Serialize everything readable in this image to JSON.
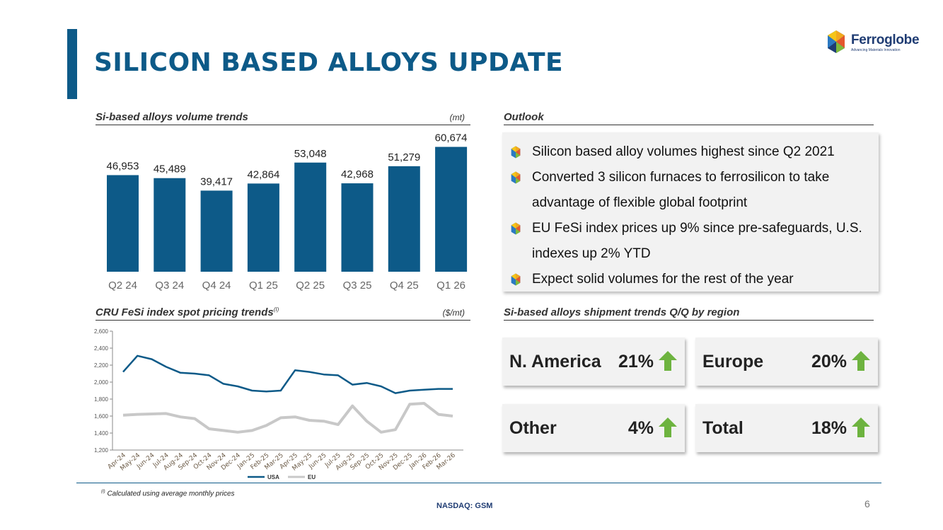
{
  "page": {
    "title": "SILICON BASED ALLOYS UPDATE",
    "page_number": "6",
    "ticker": "NASDAQ: GSM",
    "footnote_marker": "(I)",
    "footnote": "Calculated using average monthly prices"
  },
  "logo": {
    "name": "Ferroglobe",
    "tagline": "Advancing Materials Innovation"
  },
  "volume_section": {
    "title": "Si-based alloys volume trends",
    "unit": "(mt)"
  },
  "outlook": {
    "title": "Outlook",
    "items": [
      {
        "lines": [
          "Silicon based alloy volumes highest since Q2 2021"
        ]
      },
      {
        "lines": [
          "Converted 3 silicon furnaces to ferrosilicon to take",
          "advantage of flexible global footprint"
        ]
      },
      {
        "lines": [
          "EU FeSi index prices up 9% since pre-safeguards, U.S.",
          "indexes up 2% YTD"
        ]
      },
      {
        "lines": [
          "Expect solid volumes for the rest of the year"
        ]
      }
    ]
  },
  "pricing_section": {
    "title": "CRU FeSi index spot pricing trends",
    "marker": "(I)",
    "unit": "($/mt)"
  },
  "shipment_section": {
    "title": "Si-based alloys shipment trends Q/Q by region",
    "cards": [
      {
        "label": "N. America",
        "value": "21%"
      },
      {
        "label": "Europe",
        "value": "20%"
      },
      {
        "label": "Other",
        "value": "4%"
      },
      {
        "label": "Total",
        "value": "18%"
      }
    ]
  },
  "colors": {
    "brand_blue": "#0d5a88",
    "usa_line": "#0d5a88",
    "eu_line": "#c8c8c8",
    "arrow_green": "#6db33f"
  },
  "chart_data": [
    {
      "type": "bar",
      "categories": [
        "Q2 24",
        "Q3 24",
        "Q4 24",
        "Q1 25",
        "Q2 25",
        "Q3 25",
        "Q4 25",
        "Q1 26"
      ],
      "values": [
        46953,
        45489,
        39417,
        42864,
        53048,
        42968,
        51279,
        60674
      ],
      "value_labels": [
        "46,953",
        "45,489",
        "39,417",
        "42,864",
        "53,048",
        "42,968",
        "51,279",
        "60,674"
      ],
      "title": "Si-based alloys volume trends",
      "ylabel": "(mt)",
      "ylim": [
        0,
        65000
      ],
      "grid": false
    },
    {
      "type": "line",
      "x": [
        "Apr-24",
        "May-24",
        "Jun-24",
        "Jul-24",
        "Aug-24",
        "Sep-24",
        "Oct-24",
        "Nov-24",
        "Dec-24",
        "Jan-25",
        "Feb-25",
        "Mar-25",
        "Apr-25",
        "May-25",
        "Jun-25",
        "Jul-25",
        "Aug-25",
        "Sep-25",
        "Oct-25",
        "Nov-25",
        "Dec-25",
        "Jan-26",
        "Feb-26",
        "Mar-26"
      ],
      "series": [
        {
          "name": "USA",
          "values": [
            2120,
            2310,
            2270,
            2180,
            2110,
            2100,
            2080,
            1980,
            1950,
            1900,
            1890,
            1900,
            2140,
            2120,
            2090,
            2080,
            1970,
            1990,
            1950,
            1870,
            1900,
            1910,
            1920,
            1920
          ]
        },
        {
          "name": "EU",
          "values": [
            1610,
            1620,
            1625,
            1630,
            1590,
            1570,
            1450,
            1430,
            1410,
            1430,
            1490,
            1580,
            1590,
            1550,
            1540,
            1500,
            1720,
            1540,
            1410,
            1440,
            1740,
            1750,
            1620,
            1600
          ]
        }
      ],
      "title": "CRU FeSi index spot pricing trends",
      "ylabel": "($/mt)",
      "yticks": [
        "1,200",
        "1,400",
        "1,600",
        "1,800",
        "2,000",
        "2,200",
        "2,400",
        "2,600"
      ],
      "ylim": [
        1200,
        2600
      ],
      "legend": "bottom",
      "grid": false
    }
  ]
}
